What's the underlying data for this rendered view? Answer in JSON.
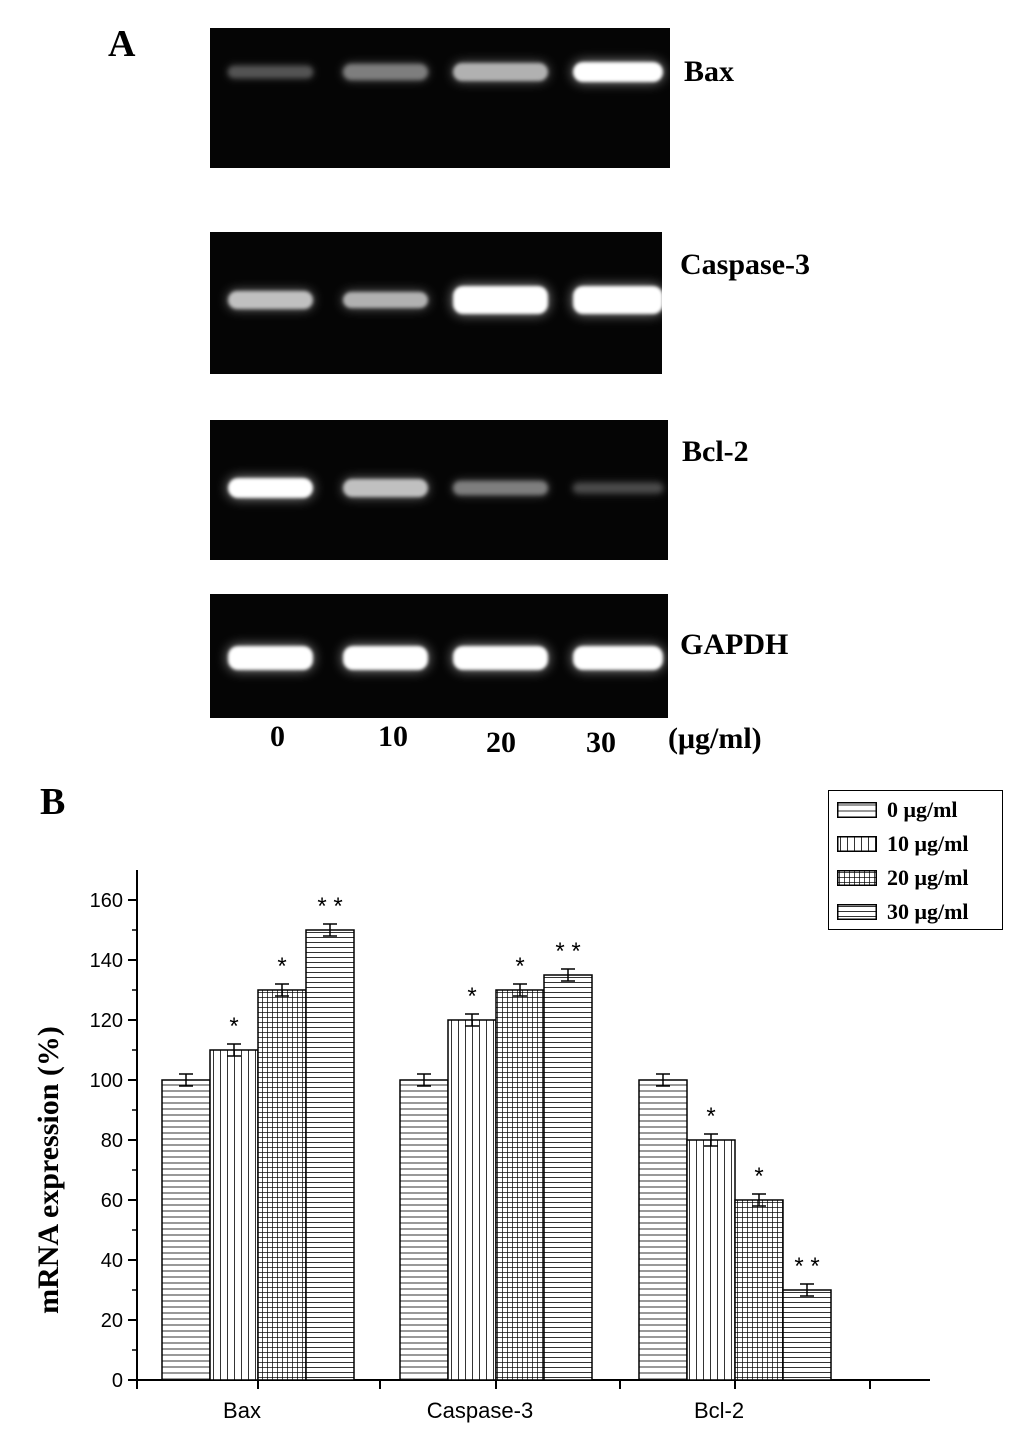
{
  "panel_a": {
    "letter": "A",
    "gels": [
      {
        "label": "Bax",
        "intensities": [
          0.35,
          0.55,
          0.75,
          1.0
        ],
        "band_height": [
          12,
          16,
          18,
          20
        ]
      },
      {
        "label": "Caspase-3",
        "intensities": [
          0.8,
          0.75,
          1.0,
          1.0
        ],
        "band_height": [
          18,
          16,
          28,
          28
        ]
      },
      {
        "label": "Bcl-2",
        "intensities": [
          1.0,
          0.8,
          0.55,
          0.3
        ],
        "band_height": [
          20,
          18,
          14,
          10
        ]
      },
      {
        "label": "GAPDH",
        "intensities": [
          1.0,
          1.0,
          1.0,
          1.0
        ],
        "band_height": [
          24,
          24,
          24,
          24
        ]
      }
    ],
    "doses": [
      "0",
      "10",
      "20",
      "30"
    ],
    "dose_unit": "(μg/ml)"
  },
  "panel_b": {
    "letter": "B"
  },
  "chart_data": {
    "type": "bar",
    "categories": [
      "Bax",
      "Caspase-3",
      "Bcl-2"
    ],
    "series": [
      {
        "name": "0  μg/ml",
        "values": [
          100,
          100,
          100
        ],
        "errors": [
          2,
          2,
          2
        ],
        "significance": [
          "",
          "",
          ""
        ],
        "pattern": "horizontal"
      },
      {
        "name": "10 μg/ml",
        "values": [
          110,
          120,
          80
        ],
        "errors": [
          2,
          2,
          2
        ],
        "significance": [
          "*",
          "*",
          "*"
        ],
        "pattern": "vertical"
      },
      {
        "name": "20 μg/ml",
        "values": [
          130,
          130,
          60
        ],
        "errors": [
          2,
          2,
          2
        ],
        "significance": [
          "*",
          "*",
          "*"
        ],
        "pattern": "grid"
      },
      {
        "name": "30 μg/ml",
        "values": [
          150,
          135,
          30
        ],
        "errors": [
          2,
          2,
          2
        ],
        "significance": [
          "* *",
          "* *",
          "* *"
        ],
        "pattern": "dense-horizontal"
      }
    ],
    "xlabel": "",
    "ylabel": "mRNA expression (%)",
    "ylim": [
      0,
      170
    ],
    "yticks": [
      0,
      20,
      40,
      60,
      80,
      100,
      120,
      140,
      160
    ],
    "legend_position": "top-right",
    "grid": false
  }
}
